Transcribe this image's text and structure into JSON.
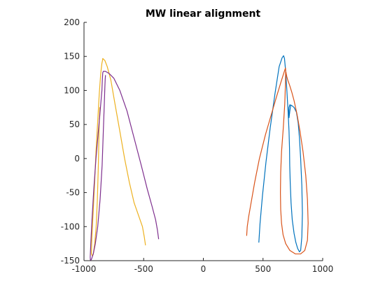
{
  "chart_data": {
    "type": "line",
    "title": "MW linear alignment",
    "xlabel": "",
    "ylabel": "",
    "xlim": [
      -1000,
      1000
    ],
    "ylim": [
      -150,
      200
    ],
    "xticks": [
      -1000,
      -500,
      0,
      500,
      1000
    ],
    "yticks": [
      -150,
      -100,
      -50,
      0,
      50,
      100,
      150,
      200
    ],
    "xtick_labels": [
      "-1000",
      "-500",
      "0",
      "500",
      "1000"
    ],
    "ytick_labels": [
      "-150",
      "-100",
      "-50",
      "0",
      "50",
      "100",
      "150",
      "200"
    ],
    "grid": false,
    "series": [
      {
        "color": "#0072BD",
        "x": [
          465,
          475,
          495,
          525,
          560,
          600,
          635,
          660,
          672,
          680,
          690,
          700,
          710,
          718,
          722,
          724,
          728,
          735,
          745,
          760,
          775,
          790,
          805,
          815,
          825,
          830,
          825,
          815,
          805,
          795,
          780,
          760,
          740,
          725,
          718,
          716,
          718,
          725,
          732
        ],
        "y": [
          -123,
          -95,
          -55,
          -5,
          45,
          95,
          135,
          148,
          151,
          147,
          128,
          100,
          68,
          40,
          15,
          -10,
          -35,
          -65,
          -90,
          -110,
          -123,
          -132,
          -137,
          -135,
          -115,
          -80,
          -40,
          0,
          30,
          52,
          68,
          75,
          78,
          79,
          75,
          68,
          60,
          70,
          78
        ]
      },
      {
        "color": "#D95319",
        "x": [
          363,
          368,
          380,
          400,
          430,
          470,
          520,
          570,
          615,
          650,
          675,
          688,
          690,
          688,
          682,
          670,
          655,
          648,
          646,
          648,
          655,
          668,
          690,
          725,
          770,
          815,
          850,
          872,
          878,
          872,
          858,
          835,
          810,
          785,
          760,
          740,
          722,
          708,
          700,
          695,
          692
        ],
        "y": [
          -113,
          -100,
          -85,
          -65,
          -35,
          0,
          35,
          65,
          92,
          112,
          126,
          133,
          130,
          110,
          80,
          45,
          10,
          -20,
          -50,
          -75,
          -95,
          -112,
          -125,
          -135,
          -140,
          -140,
          -135,
          -120,
          -95,
          -60,
          -25,
          10,
          40,
          65,
          85,
          98,
          108,
          115,
          120,
          124,
          127
        ]
      },
      {
        "color": "#EDB120",
        "x": [
          -485,
          -495,
          -510,
          -540,
          -580,
          -620,
          -660,
          -700,
          -740,
          -775,
          -805,
          -825,
          -838,
          -842,
          -845,
          -850,
          -860,
          -872,
          -885,
          -900,
          -912,
          -925,
          -935,
          -938,
          -930,
          -922,
          -910,
          -898,
          -888,
          -880,
          -874,
          -870,
          -868,
          -867,
          -868,
          -870,
          -873
        ],
        "y": [
          -127,
          -115,
          -100,
          -85,
          -65,
          -35,
          0,
          40,
          80,
          115,
          135,
          144,
          146,
          147,
          144,
          140,
          125,
          95,
          55,
          10,
          -40,
          -85,
          -120,
          -140,
          -143,
          -140,
          -125,
          -100,
          -60,
          -10,
          40,
          65,
          75,
          70,
          62,
          60,
          58
        ]
      },
      {
        "color": "#7E2F8E",
        "x": [
          -375,
          -385,
          -400,
          -430,
          -470,
          -520,
          -580,
          -640,
          -700,
          -750,
          -790,
          -820,
          -838,
          -843,
          -846,
          -850,
          -862,
          -880,
          -900,
          -918,
          -933,
          -943,
          -948,
          -946,
          -938,
          -922,
          -905,
          -885,
          -865,
          -848,
          -838,
          -830,
          -825,
          -822,
          -820
        ],
        "y": [
          -118,
          -105,
          -90,
          -70,
          -45,
          -10,
          30,
          70,
          100,
          118,
          125,
          128,
          128,
          126,
          118,
          100,
          75,
          40,
          0,
          -45,
          -90,
          -125,
          -145,
          -150,
          -148,
          -140,
          -125,
          -100,
          -60,
          -10,
          40,
          80,
          105,
          117,
          122
        ]
      }
    ]
  }
}
